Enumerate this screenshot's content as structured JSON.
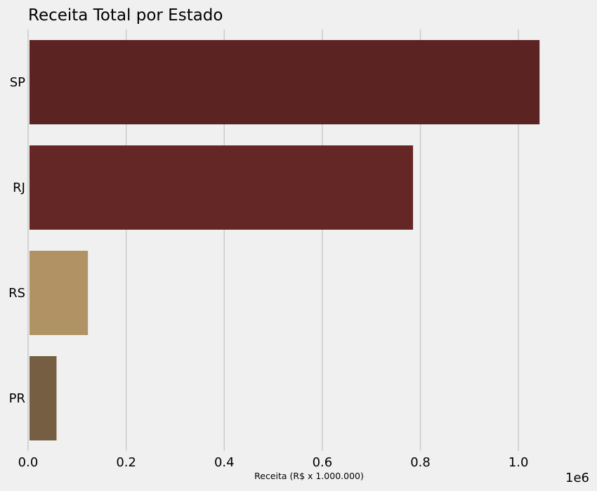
{
  "chart_data": {
    "type": "bar",
    "orientation": "horizontal",
    "title": "Receita Total por Estado",
    "xlabel": "Receita (R$ x 1.000.000)",
    "ylabel": "",
    "offset_label": "1e6",
    "categories": [
      "SP",
      "RJ",
      "RS",
      "PR"
    ],
    "values": [
      1043000,
      785000,
      122000,
      58000
    ],
    "colors": [
      "#5c2323",
      "#652626",
      "#b09264",
      "#765e42"
    ],
    "xlim": [
      0,
      1100000
    ],
    "xticks": [
      0,
      200000,
      400000,
      600000,
      800000,
      1000000
    ],
    "xtick_labels": [
      "0.0",
      "0.2",
      "0.4",
      "0.6",
      "0.8",
      "1.0"
    ],
    "grid": "x",
    "legend": "none"
  }
}
